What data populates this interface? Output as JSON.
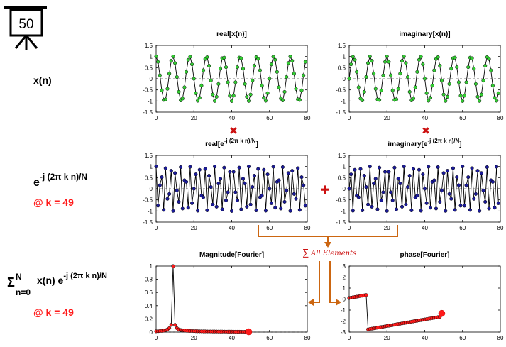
{
  "board": {
    "number": "50"
  },
  "rows": {
    "signal_label": "x(n)",
    "kernel_label": {
      "base": "e",
      "exponent": "-j (2π k n)/N"
    },
    "k_label": "@ k = 49",
    "sum_label": {
      "sigma": "Σ",
      "upper": "N",
      "lower": "n=0",
      "term": "x(n) e",
      "exponent": "-j (2π k n)/N"
    },
    "k_label_2": "@ k = 49"
  },
  "operators": {
    "multiply": "✖",
    "add": "✚",
    "sum_symbol": "∑",
    "sum_text": "All Elements"
  },
  "colors": {
    "green": "#33cc33",
    "blue": "#1a1a99",
    "red": "#ff1a1a",
    "orange": "#cc6611",
    "line": "#000000"
  },
  "chart_data": [
    {
      "id": "real_x",
      "type": "line",
      "title": "real[x(n)]",
      "xlim": [
        0,
        80
      ],
      "ylim": [
        -1.5,
        1.5
      ],
      "xticks": [
        0,
        20,
        40,
        60,
        80
      ],
      "yticks": [
        1.5,
        1,
        0.5,
        0,
        -0.5,
        -1,
        -1.5
      ],
      "yticklabels": [
        "1.5",
        "1",
        "0.5",
        "0",
        "-0.5",
        "-1",
        "-1.5"
      ],
      "x": {
        "start": 0,
        "end": 79,
        "step": 1
      },
      "function": "cos",
      "frequency_cycles": 9,
      "marker_color": "#33cc33"
    },
    {
      "id": "imag_x",
      "type": "line",
      "title": "imaginary[x(n)]",
      "xlim": [
        0,
        80
      ],
      "ylim": [
        -1.5,
        1.5
      ],
      "xticks": [
        0,
        20,
        40,
        60,
        80
      ],
      "yticks": [
        1.5,
        1,
        0.5,
        0,
        -0.5,
        -1,
        -1.5
      ],
      "yticklabels": [
        "1.5",
        "1",
        "0.5",
        "0",
        "-0.5",
        "-1",
        "-1.5"
      ],
      "x": {
        "start": 0,
        "end": 79,
        "step": 1
      },
      "function": "sin",
      "frequency_cycles": 9,
      "marker_color": "#33cc33"
    },
    {
      "id": "real_k",
      "type": "line",
      "title": "real[e",
      "title_sup": "-j (2π k n)/N",
      "title_end": "]",
      "xlim": [
        0,
        80
      ],
      "ylim": [
        -1.5,
        1.5
      ],
      "xticks": [
        0,
        20,
        40,
        60,
        80
      ],
      "yticks": [
        1.5,
        1,
        0.5,
        0,
        -0.5,
        -1,
        -1.5
      ],
      "yticklabels": [
        "1.5",
        "1",
        "0.5",
        "0",
        "-0.5",
        "-1",
        "-1.5"
      ],
      "x": {
        "start": 0,
        "end": 79,
        "step": 1
      },
      "function": "cos",
      "frequency_cycles": 31,
      "marker_color": "#1a1a99"
    },
    {
      "id": "imag_k",
      "type": "line",
      "title": "imaginary[e",
      "title_sup": "-j (2π k n)/N",
      "title_end": "]",
      "xlim": [
        0,
        80
      ],
      "ylim": [
        -1.5,
        1.5
      ],
      "xticks": [
        0,
        20,
        40,
        60,
        80
      ],
      "yticks": [
        1.5,
        1,
        0.5,
        0,
        -0.5,
        -1,
        -1.5
      ],
      "yticklabels": [
        "1.5",
        "1",
        "0.5",
        "0",
        "-0.5",
        "-1",
        "-1.5"
      ],
      "x": {
        "start": 0,
        "end": 79,
        "step": 1
      },
      "function": "sin",
      "frequency_cycles": 31,
      "marker_color": "#1a1a99"
    },
    {
      "id": "magnitude",
      "type": "line",
      "title": "Magnitude[Fourier]",
      "xlim": [
        0,
        80
      ],
      "ylim": [
        0,
        1
      ],
      "xticks": [
        0,
        20,
        40,
        60,
        80
      ],
      "yticks": [
        1,
        0.8,
        0.6,
        0.4,
        0.2,
        0
      ],
      "yticklabels": [
        "1",
        "0.8",
        "0.6",
        "0.4",
        "0.2",
        "0"
      ],
      "x": {
        "start": 0,
        "end": 49,
        "step": 1
      },
      "values": [
        0.012,
        0.013,
        0.015,
        0.018,
        0.022,
        0.029,
        0.04,
        0.06,
        0.11,
        1.0,
        0.11,
        0.06,
        0.04,
        0.032,
        0.027,
        0.024,
        0.021,
        0.019,
        0.017,
        0.016,
        0.015,
        0.014,
        0.013,
        0.012,
        0.012,
        0.011,
        0.011,
        0.01,
        0.01,
        0.01,
        0.009,
        0.009,
        0.009,
        0.008,
        0.008,
        0.008,
        0.008,
        0.007,
        0.007,
        0.007,
        0.007,
        0.006,
        0.006,
        0.006,
        0.006,
        0.006,
        0.005,
        0.005,
        0.005,
        0.005
      ],
      "marker_color": "#ff1a1a",
      "dashed_baseline": true
    },
    {
      "id": "phase",
      "type": "line",
      "title": "phase[Fourier]",
      "xlim": [
        0,
        80
      ],
      "ylim": [
        -3,
        3
      ],
      "xticks": [
        0,
        20,
        40,
        60,
        80
      ],
      "yticks": [
        3,
        2,
        1,
        0,
        -1,
        -2,
        -3
      ],
      "yticklabels": [
        "3",
        "2",
        "1",
        "0",
        "-1",
        "-2",
        "-3"
      ],
      "x": {
        "start": 0,
        "end": 49,
        "step": 1
      },
      "values": [
        0.1,
        0.13,
        0.16,
        0.19,
        0.22,
        0.25,
        0.28,
        0.31,
        0.34,
        0.37,
        -2.75,
        -2.72,
        -2.69,
        -2.66,
        -2.63,
        -2.6,
        -2.57,
        -2.54,
        -2.51,
        -2.48,
        -2.45,
        -2.42,
        -2.39,
        -2.36,
        -2.33,
        -2.3,
        -2.27,
        -2.24,
        -2.21,
        -2.18,
        -2.15,
        -2.12,
        -2.09,
        -2.06,
        -2.03,
        -2.0,
        -1.97,
        -1.94,
        -1.91,
        -1.88,
        -1.85,
        -1.82,
        -1.79,
        -1.76,
        -1.73,
        -1.7,
        -1.67,
        -1.64,
        -1.61,
        -1.3
      ],
      "marker_color": "#ff1a1a"
    }
  ]
}
